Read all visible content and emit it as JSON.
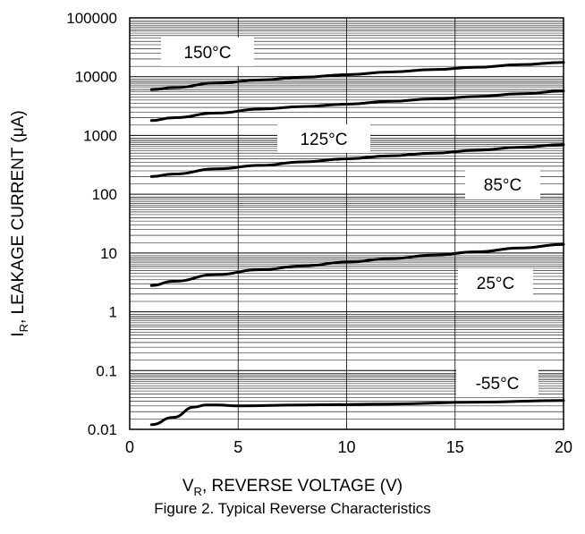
{
  "chart_data": {
    "type": "line",
    "title": "",
    "caption": "Figure 2. Typical Reverse Characteristics",
    "xlabel": {
      "symbol": "V",
      "subscript": "R",
      "text": ", REVERSE VOLTAGE (V)"
    },
    "ylabel": {
      "symbol": "I",
      "subscript": "R",
      "text": ", LEAKAGE CURRENT (μA)"
    },
    "xlim": [
      0,
      20
    ],
    "ylim": [
      0.01,
      100000
    ],
    "yscale": "log",
    "grid": true,
    "x_ticks": [
      "0",
      "5",
      "10",
      "15",
      "20"
    ],
    "y_ticks": [
      "0.01",
      "0.1",
      "1",
      "10",
      "100",
      "1000",
      "10000",
      "100000"
    ],
    "series": [
      {
        "name": "150°C",
        "x": [
          1,
          2,
          4,
          6,
          8,
          10,
          12,
          14,
          16,
          18,
          20
        ],
        "y": [
          6000,
          6500,
          7800,
          8800,
          9800,
          10800,
          12000,
          13200,
          14500,
          16000,
          17500
        ]
      },
      {
        "name": "125°C",
        "x": [
          1,
          2,
          4,
          6,
          8,
          10,
          12,
          14,
          16,
          18,
          20
        ],
        "y": [
          1800,
          2000,
          2400,
          2800,
          3100,
          3400,
          3800,
          4200,
          4600,
          5100,
          5700
        ]
      },
      {
        "name": "85°C",
        "x": [
          1,
          2,
          4,
          6,
          8,
          10,
          12,
          14,
          16,
          18,
          20
        ],
        "y": [
          200,
          220,
          270,
          310,
          355,
          400,
          450,
          500,
          560,
          630,
          700
        ]
      },
      {
        "name": "25°C",
        "x": [
          1,
          2,
          4,
          6,
          8,
          10,
          12,
          14,
          16,
          18,
          20
        ],
        "y": [
          2.8,
          3.3,
          4.3,
          5.2,
          6.0,
          7.0,
          8.0,
          9.2,
          10.5,
          12.2,
          14.0
        ]
      },
      {
        "name": "-55°C",
        "x": [
          1,
          2,
          3,
          3.5,
          4,
          5,
          8,
          12,
          16,
          20
        ],
        "y": [
          0.012,
          0.016,
          0.024,
          0.026,
          0.026,
          0.025,
          0.026,
          0.027,
          0.029,
          0.031
        ]
      }
    ]
  }
}
